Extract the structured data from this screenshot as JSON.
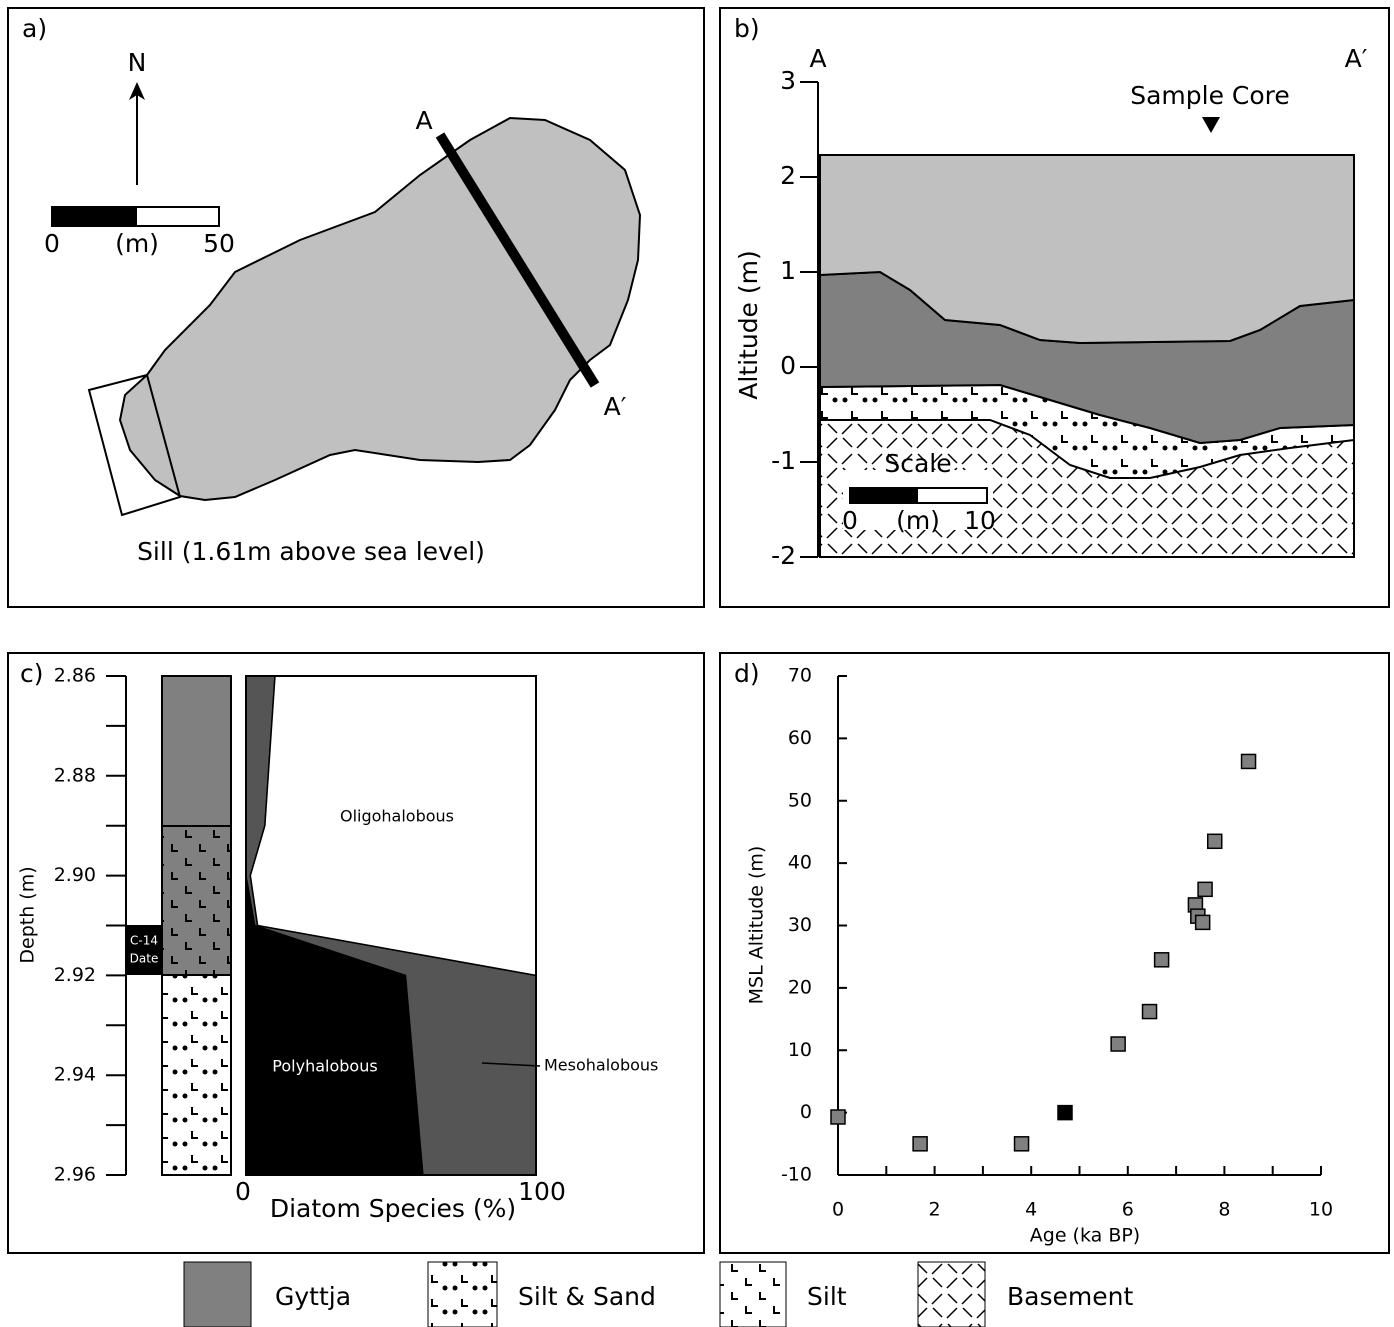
{
  "panel_a": {
    "label": "a)",
    "north": "N",
    "scale": {
      "min": 0,
      "unit": "(m)",
      "max": 50
    },
    "section_start": "A",
    "section_end": "A′",
    "caption": "Sill (1.61m above sea level)"
  },
  "panel_b": {
    "label": "b)",
    "section_start": "A",
    "section_end": "A′",
    "core": "Sample Core",
    "ylabel": "Altitude (m)",
    "ylim": [
      -2,
      3
    ],
    "yticks": [
      3,
      2,
      1,
      0,
      -1,
      -2
    ],
    "scale_title": "Scale",
    "scale": {
      "min": 0,
      "unit": "(m)",
      "max": 10
    }
  },
  "chart_data": [
    {
      "type": "area",
      "label": "c)",
      "xlabel": "Diatom Species (%)",
      "ylabel": "Depth (m)",
      "xlim": [
        0,
        100
      ],
      "xticks": [
        0,
        100
      ],
      "ylim": [
        2.86,
        2.96
      ],
      "y_inverted": true,
      "yticks": [
        2.86,
        2.88,
        {
          "value": 2.9,
          "label": "2.90"
        },
        2.92,
        2.94,
        2.96
      ],
      "yminorticks": [
        2.87,
        2.89,
        2.91,
        2.93,
        2.95
      ],
      "annotations": [
        "C-14",
        "Date"
      ],
      "y": [
        2.86,
        2.89,
        2.9,
        2.91,
        2.92,
        2.96
      ],
      "series": [
        {
          "name": "Polyhalobous",
          "color": "#000000",
          "values": [
            0,
            0,
            0,
            3,
            55,
            61
          ]
        },
        {
          "name": "Mesohalobous",
          "color": "#555555",
          "values": [
            10,
            6.5,
            1.5,
            1,
            45,
            39
          ]
        },
        {
          "name": "Oligohalobous",
          "color": "#ffffff",
          "values": [
            90,
            93.5,
            98.5,
            96,
            0,
            0
          ]
        }
      ]
    },
    {
      "type": "scatter",
      "label": "d)",
      "xlabel": "Age (ka BP)",
      "ylabel": "MSL Altitude (m)",
      "xlim": [
        0,
        10
      ],
      "xticks": [
        0,
        2,
        4,
        6,
        8,
        10
      ],
      "xminorticks": [
        1,
        3,
        5,
        7,
        9
      ],
      "ylim": [
        -10,
        70
      ],
      "yticks": [
        -10,
        0,
        10,
        20,
        30,
        40,
        50,
        60,
        70
      ],
      "x": [
        0,
        1.7,
        3.8,
        4.7,
        5.8,
        6.45,
        6.7,
        7.4,
        7.45,
        7.55,
        7.6,
        7.8,
        8.5
      ],
      "values": [
        -0.7,
        -5,
        -5,
        0,
        11,
        16.2,
        24.5,
        33.3,
        31.5,
        30.5,
        35.8,
        43.5,
        56.3
      ],
      "colors": [
        "#808080",
        "#808080",
        "#808080",
        "#000000",
        "#808080",
        "#808080",
        "#808080",
        "#808080",
        "#808080",
        "#808080",
        "#808080",
        "#808080",
        "#808080"
      ]
    }
  ],
  "legend": {
    "items": [
      "Gyttja",
      "Silt & Sand",
      "Silt",
      "Basement"
    ]
  }
}
